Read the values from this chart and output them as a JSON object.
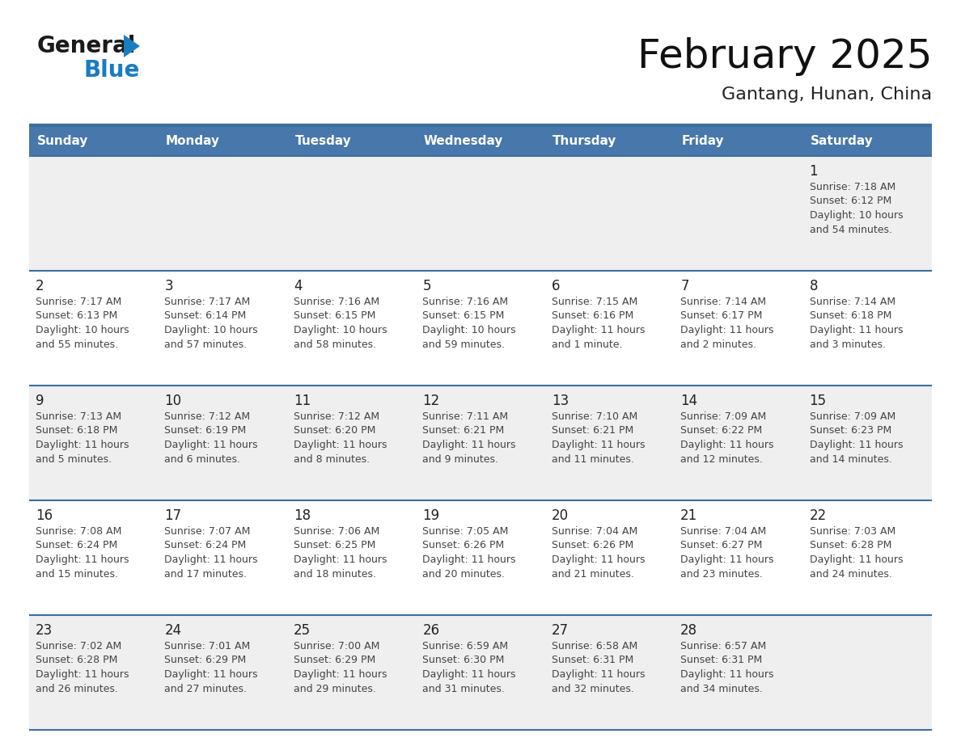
{
  "title": "February 2025",
  "subtitle": "Gantang, Hunan, China",
  "days_of_week": [
    "Sunday",
    "Monday",
    "Tuesday",
    "Wednesday",
    "Thursday",
    "Friday",
    "Saturday"
  ],
  "header_bg": "#4777ab",
  "header_text": "#ffffff",
  "row_bg_light": "#efefef",
  "row_bg_white": "#ffffff",
  "separator_color": "#3a6fa0",
  "day_number_color": "#222222",
  "info_text_color": "#444444",
  "logo_black": "#1a1a1a",
  "logo_blue": "#1a7cc1",
  "calendar_data": [
    {
      "day": 1,
      "col": 6,
      "row": 0,
      "sunrise": "7:18 AM",
      "sunset": "6:12 PM",
      "daylight": "10 hours and 54 minutes."
    },
    {
      "day": 2,
      "col": 0,
      "row": 1,
      "sunrise": "7:17 AM",
      "sunset": "6:13 PM",
      "daylight": "10 hours and 55 minutes."
    },
    {
      "day": 3,
      "col": 1,
      "row": 1,
      "sunrise": "7:17 AM",
      "sunset": "6:14 PM",
      "daylight": "10 hours and 57 minutes."
    },
    {
      "day": 4,
      "col": 2,
      "row": 1,
      "sunrise": "7:16 AM",
      "sunset": "6:15 PM",
      "daylight": "10 hours and 58 minutes."
    },
    {
      "day": 5,
      "col": 3,
      "row": 1,
      "sunrise": "7:16 AM",
      "sunset": "6:15 PM",
      "daylight": "10 hours and 59 minutes."
    },
    {
      "day": 6,
      "col": 4,
      "row": 1,
      "sunrise": "7:15 AM",
      "sunset": "6:16 PM",
      "daylight": "11 hours and 1 minute."
    },
    {
      "day": 7,
      "col": 5,
      "row": 1,
      "sunrise": "7:14 AM",
      "sunset": "6:17 PM",
      "daylight": "11 hours and 2 minutes."
    },
    {
      "day": 8,
      "col": 6,
      "row": 1,
      "sunrise": "7:14 AM",
      "sunset": "6:18 PM",
      "daylight": "11 hours and 3 minutes."
    },
    {
      "day": 9,
      "col": 0,
      "row": 2,
      "sunrise": "7:13 AM",
      "sunset": "6:18 PM",
      "daylight": "11 hours and 5 minutes."
    },
    {
      "day": 10,
      "col": 1,
      "row": 2,
      "sunrise": "7:12 AM",
      "sunset": "6:19 PM",
      "daylight": "11 hours and 6 minutes."
    },
    {
      "day": 11,
      "col": 2,
      "row": 2,
      "sunrise": "7:12 AM",
      "sunset": "6:20 PM",
      "daylight": "11 hours and 8 minutes."
    },
    {
      "day": 12,
      "col": 3,
      "row": 2,
      "sunrise": "7:11 AM",
      "sunset": "6:21 PM",
      "daylight": "11 hours and 9 minutes."
    },
    {
      "day": 13,
      "col": 4,
      "row": 2,
      "sunrise": "7:10 AM",
      "sunset": "6:21 PM",
      "daylight": "11 hours and 11 minutes."
    },
    {
      "day": 14,
      "col": 5,
      "row": 2,
      "sunrise": "7:09 AM",
      "sunset": "6:22 PM",
      "daylight": "11 hours and 12 minutes."
    },
    {
      "day": 15,
      "col": 6,
      "row": 2,
      "sunrise": "7:09 AM",
      "sunset": "6:23 PM",
      "daylight": "11 hours and 14 minutes."
    },
    {
      "day": 16,
      "col": 0,
      "row": 3,
      "sunrise": "7:08 AM",
      "sunset": "6:24 PM",
      "daylight": "11 hours and 15 minutes."
    },
    {
      "day": 17,
      "col": 1,
      "row": 3,
      "sunrise": "7:07 AM",
      "sunset": "6:24 PM",
      "daylight": "11 hours and 17 minutes."
    },
    {
      "day": 18,
      "col": 2,
      "row": 3,
      "sunrise": "7:06 AM",
      "sunset": "6:25 PM",
      "daylight": "11 hours and 18 minutes."
    },
    {
      "day": 19,
      "col": 3,
      "row": 3,
      "sunrise": "7:05 AM",
      "sunset": "6:26 PM",
      "daylight": "11 hours and 20 minutes."
    },
    {
      "day": 20,
      "col": 4,
      "row": 3,
      "sunrise": "7:04 AM",
      "sunset": "6:26 PM",
      "daylight": "11 hours and 21 minutes."
    },
    {
      "day": 21,
      "col": 5,
      "row": 3,
      "sunrise": "7:04 AM",
      "sunset": "6:27 PM",
      "daylight": "11 hours and 23 minutes."
    },
    {
      "day": 22,
      "col": 6,
      "row": 3,
      "sunrise": "7:03 AM",
      "sunset": "6:28 PM",
      "daylight": "11 hours and 24 minutes."
    },
    {
      "day": 23,
      "col": 0,
      "row": 4,
      "sunrise": "7:02 AM",
      "sunset": "6:28 PM",
      "daylight": "11 hours and 26 minutes."
    },
    {
      "day": 24,
      "col": 1,
      "row": 4,
      "sunrise": "7:01 AM",
      "sunset": "6:29 PM",
      "daylight": "11 hours and 27 minutes."
    },
    {
      "day": 25,
      "col": 2,
      "row": 4,
      "sunrise": "7:00 AM",
      "sunset": "6:29 PM",
      "daylight": "11 hours and 29 minutes."
    },
    {
      "day": 26,
      "col": 3,
      "row": 4,
      "sunrise": "6:59 AM",
      "sunset": "6:30 PM",
      "daylight": "11 hours and 31 minutes."
    },
    {
      "day": 27,
      "col": 4,
      "row": 4,
      "sunrise": "6:58 AM",
      "sunset": "6:31 PM",
      "daylight": "11 hours and 32 minutes."
    },
    {
      "day": 28,
      "col": 5,
      "row": 4,
      "sunrise": "6:57 AM",
      "sunset": "6:31 PM",
      "daylight": "11 hours and 34 minutes."
    }
  ]
}
